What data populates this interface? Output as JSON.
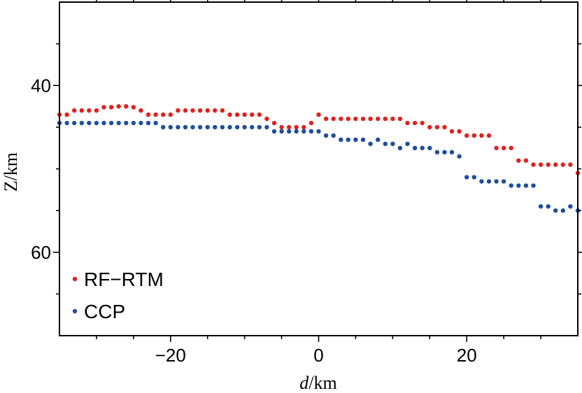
{
  "chart_data": {
    "type": "scatter",
    "xlabel": {
      "var": "d",
      "unit": "/km"
    },
    "ylabel": "Z/km",
    "xlim": [
      -35,
      35
    ],
    "ylim": [
      30,
      70
    ],
    "y_inverted": true,
    "xticks": [
      -20,
      0,
      20
    ],
    "xtick_labels": [
      "−20",
      "0",
      "20"
    ],
    "yticks": [
      40,
      60
    ],
    "ytick_labels": [
      "40",
      "60"
    ],
    "grid": false,
    "legend_position": "bottom-left",
    "series": [
      {
        "name": "RF−RTM",
        "color": "#e0201c",
        "x": [
          -35,
          -34,
          -33,
          -32,
          -31,
          -30,
          -29,
          -28,
          -27,
          -26,
          -25,
          -24,
          -23,
          -22,
          -21,
          -20,
          -19,
          -18,
          -17,
          -16,
          -15,
          -14,
          -13,
          -12,
          -11,
          -10,
          -9,
          -8,
          -7,
          -6,
          -5,
          -4,
          -3,
          -2,
          -1,
          0,
          1,
          2,
          3,
          4,
          5,
          6,
          7,
          8,
          9,
          10,
          11,
          12,
          13,
          14,
          15,
          16,
          17,
          18,
          19,
          20,
          21,
          22,
          23,
          24,
          25,
          26,
          27,
          28,
          29,
          30,
          31,
          32,
          33,
          34,
          35
        ],
        "y": [
          43.5,
          43.5,
          43.0,
          43.0,
          43.0,
          43.0,
          42.6,
          42.6,
          42.5,
          42.5,
          42.6,
          43.0,
          43.5,
          43.5,
          43.5,
          43.5,
          43.0,
          43.0,
          43.0,
          43.0,
          43.0,
          43.0,
          43.0,
          43.5,
          43.5,
          43.5,
          43.5,
          43.5,
          44.0,
          44.5,
          45.0,
          45.0,
          45.0,
          45.0,
          44.5,
          43.5,
          44.0,
          44.0,
          44.0,
          44.0,
          44.0,
          44.0,
          44.0,
          44.0,
          44.0,
          44.0,
          44.0,
          44.5,
          44.5,
          44.5,
          45.0,
          45.0,
          45.0,
          45.5,
          45.5,
          46.0,
          46.0,
          46.0,
          46.0,
          47.5,
          47.5,
          47.5,
          49.0,
          49.0,
          49.5,
          49.5,
          49.5,
          49.5,
          49.5,
          49.5,
          50.5
        ]
      },
      {
        "name": "CCP",
        "color": "#1f4e9c",
        "x": [
          -35,
          -34,
          -33,
          -32,
          -31,
          -30,
          -29,
          -28,
          -27,
          -26,
          -25,
          -24,
          -23,
          -22,
          -21,
          -20,
          -19,
          -18,
          -17,
          -16,
          -15,
          -14,
          -13,
          -12,
          -11,
          -10,
          -9,
          -8,
          -7,
          -6,
          -5,
          -4,
          -3,
          -2,
          -1,
          0,
          1,
          2,
          3,
          4,
          5,
          6,
          7,
          8,
          9,
          10,
          11,
          12,
          13,
          14,
          15,
          16,
          17,
          18,
          19,
          20,
          21,
          22,
          23,
          24,
          25,
          26,
          27,
          28,
          29,
          30,
          31,
          32,
          33,
          34,
          35
        ],
        "y": [
          44.5,
          44.5,
          44.5,
          44.5,
          44.5,
          44.5,
          44.5,
          44.5,
          44.5,
          44.5,
          44.5,
          44.5,
          44.5,
          44.5,
          45.0,
          45.0,
          45.0,
          45.0,
          45.0,
          45.0,
          45.0,
          45.0,
          45.0,
          45.0,
          45.0,
          45.0,
          45.0,
          45.0,
          45.0,
          45.5,
          45.5,
          45.5,
          45.5,
          45.5,
          45.5,
          45.5,
          46.0,
          46.0,
          46.5,
          46.5,
          46.5,
          46.5,
          47.0,
          46.5,
          47.0,
          47.0,
          47.5,
          47.0,
          47.5,
          47.5,
          47.5,
          48.0,
          48.0,
          48.0,
          48.5,
          51.0,
          51.0,
          51.5,
          51.5,
          51.5,
          51.5,
          52.0,
          52.0,
          52.0,
          52.0,
          54.5,
          54.5,
          55.0,
          55.0,
          54.5,
          55.0
        ]
      }
    ]
  }
}
